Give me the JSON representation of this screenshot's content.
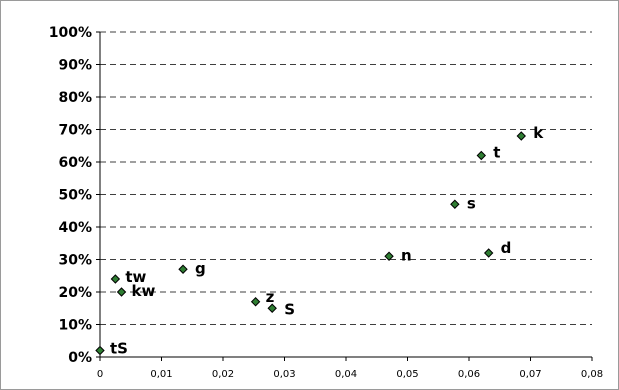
{
  "chart_data": {
    "type": "scatter",
    "xlim": [
      0,
      0.08
    ],
    "ylim": [
      0,
      1
    ],
    "x_ticks": [
      "0",
      "0,01",
      "0,02",
      "0,03",
      "0,04",
      "0,05",
      "0,06",
      "0,07",
      "0,08"
    ],
    "x_tick_values": [
      0,
      0.01,
      0.02,
      0.03,
      0.04,
      0.05,
      0.06,
      0.07,
      0.08
    ],
    "y_ticks": [
      "0%",
      "10%",
      "20%",
      "30%",
      "40%",
      "50%",
      "60%",
      "70%",
      "80%",
      "90%",
      "100%"
    ],
    "y_tick_values": [
      0,
      0.1,
      0.2,
      0.3,
      0.4,
      0.5,
      0.6,
      0.7,
      0.8,
      0.9,
      1.0
    ],
    "grid": "horizontal-dashed",
    "marker_color": "#2e7d32",
    "marker_edge": "#000000",
    "points": [
      {
        "label": "tS",
        "x": 0.0,
        "y": 0.02
      },
      {
        "label": "tw",
        "x": 0.0025,
        "y": 0.24
      },
      {
        "label": "kw",
        "x": 0.0035,
        "y": 0.2
      },
      {
        "label": "g",
        "x": 0.0135,
        "y": 0.27
      },
      {
        "label": "z",
        "x": 0.0253,
        "y": 0.17
      },
      {
        "label": "S",
        "x": 0.028,
        "y": 0.15
      },
      {
        "label": "n",
        "x": 0.047,
        "y": 0.31
      },
      {
        "label": "s",
        "x": 0.0577,
        "y": 0.47
      },
      {
        "label": "d",
        "x": 0.0632,
        "y": 0.32
      },
      {
        "label": "t",
        "x": 0.062,
        "y": 0.62
      },
      {
        "label": "k",
        "x": 0.0685,
        "y": 0.68
      }
    ]
  }
}
